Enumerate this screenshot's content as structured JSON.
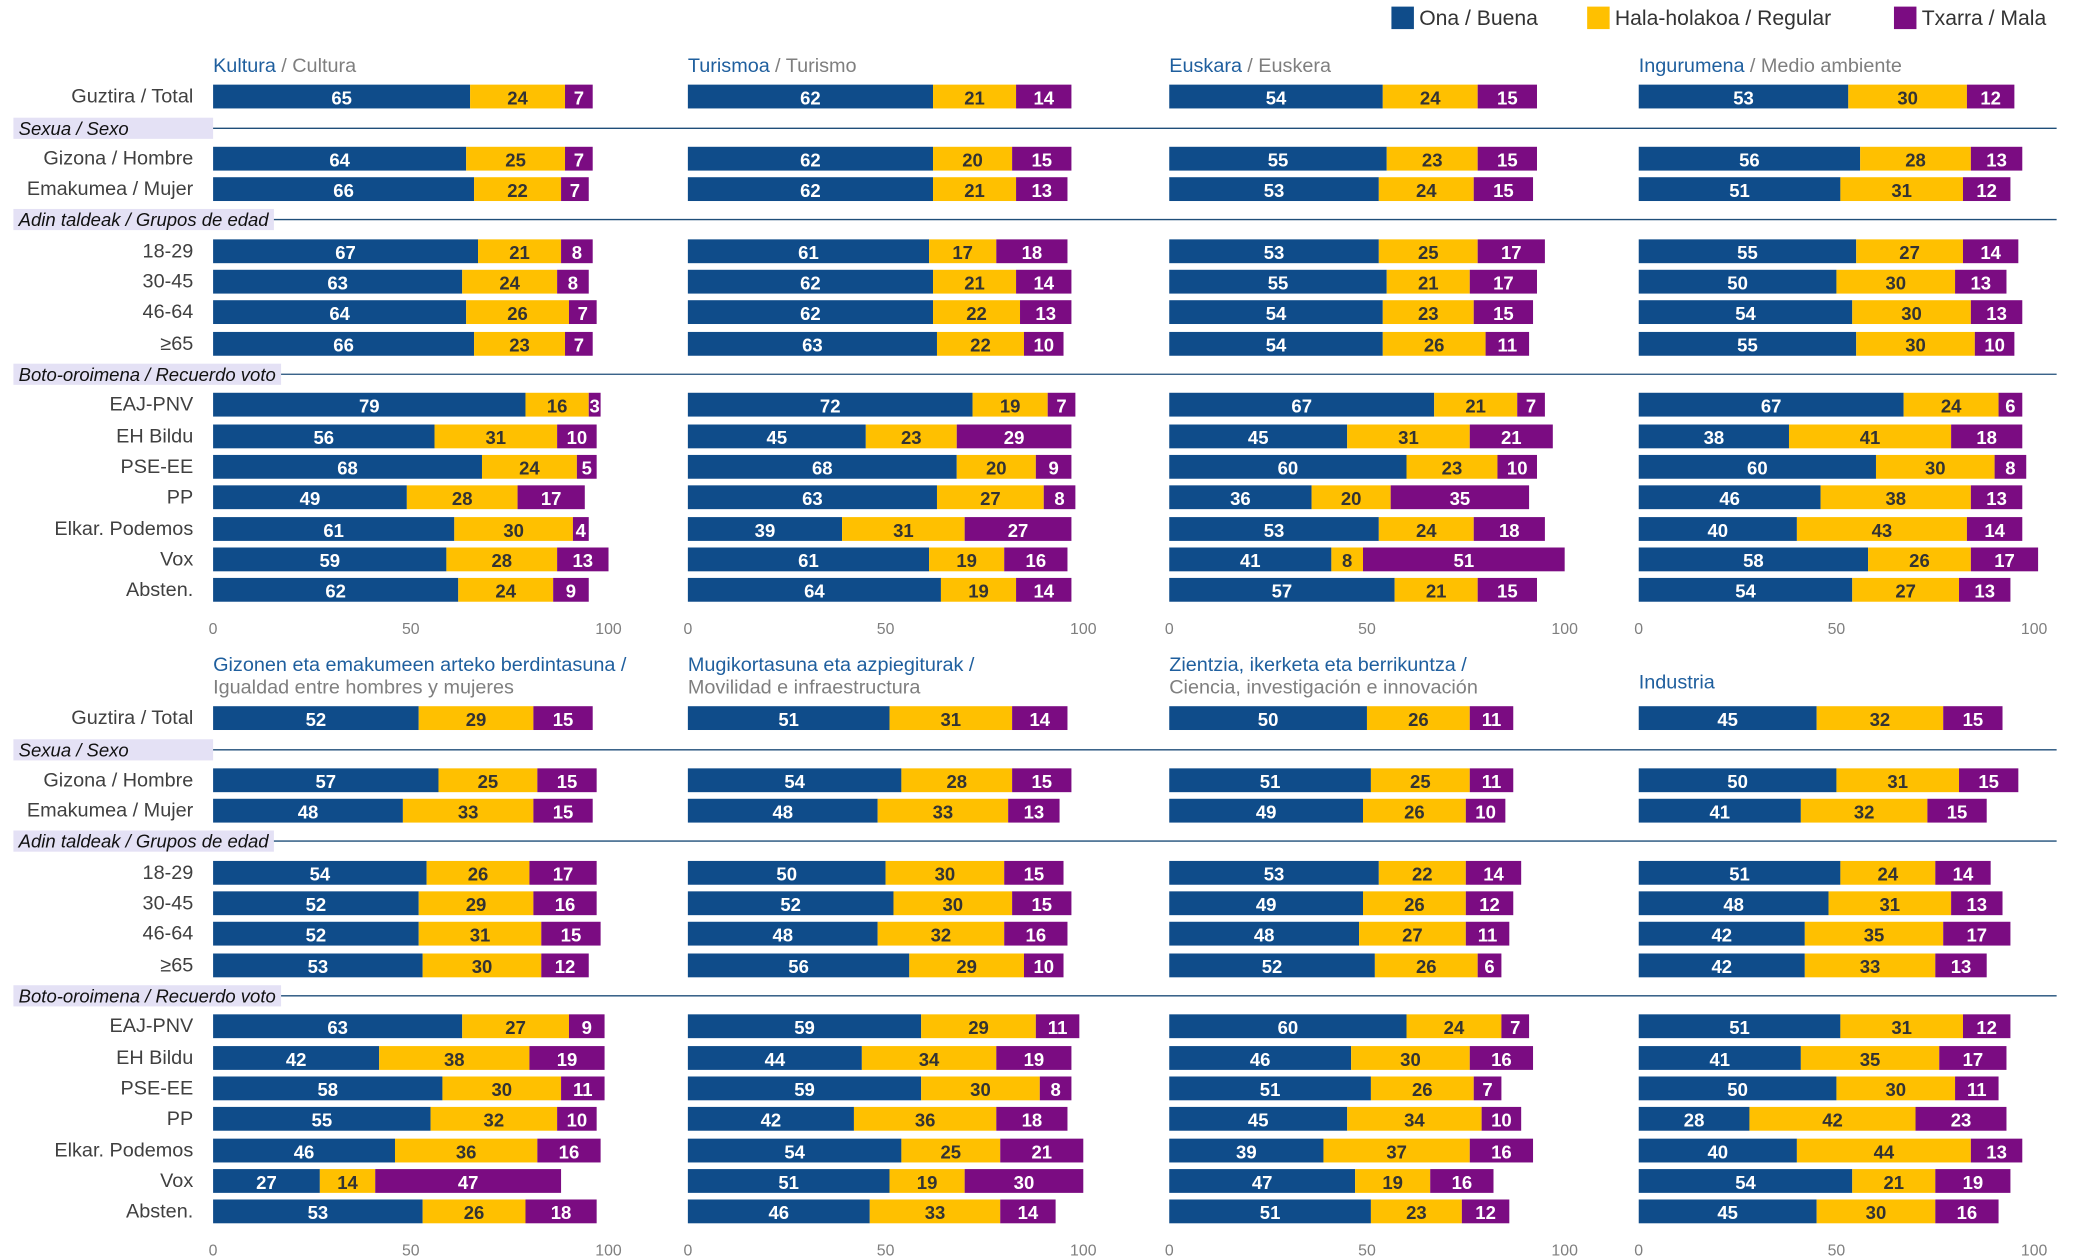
{
  "legend": [
    {
      "name": "Ona / Buena",
      "color": "#0f4c8a"
    },
    {
      "name": "Hala-holakoa / Regular",
      "color": "#ffc000"
    },
    {
      "name": "Txarra / Mala",
      "color": "#7b0c82"
    }
  ],
  "categories": [
    "Guztira / Total",
    "Gizona / Hombre",
    "Emakumea / Mujer",
    "18-29",
    "30-45",
    "46-64",
    "≥65",
    "EAJ-PNV",
    "EH Bildu",
    "PSE-EE",
    "PP",
    "Elkar. Podemos",
    "Vox",
    "Absten."
  ],
  "groups": [
    "Sexua / Sexo",
    "Adin taldeak / Grupos de edad",
    "Boto-oroimena / Recuerdo voto"
  ],
  "chart_data": [
    {
      "type": "bar",
      "orientation": "horizontal",
      "stacked": true,
      "title": "Kultura",
      "subtitle": "/ Cultura",
      "xlim": [
        0,
        100
      ],
      "xticks": [
        0,
        50,
        100
      ],
      "series": [
        {
          "values": [
            65,
            64,
            66,
            67,
            63,
            64,
            66,
            79,
            56,
            68,
            49,
            61,
            59,
            62
          ]
        },
        {
          "values": [
            24,
            25,
            22,
            21,
            24,
            26,
            23,
            16,
            31,
            24,
            28,
            30,
            28,
            24
          ]
        },
        {
          "values": [
            7,
            7,
            7,
            8,
            8,
            7,
            7,
            3,
            10,
            5,
            17,
            4,
            13,
            9
          ]
        }
      ]
    },
    {
      "type": "bar",
      "orientation": "horizontal",
      "stacked": true,
      "title": "Turismoa",
      "subtitle": "/ Turismo",
      "xlim": [
        0,
        100
      ],
      "xticks": [
        0,
        50,
        100
      ],
      "series": [
        {
          "values": [
            62,
            62,
            62,
            61,
            62,
            62,
            63,
            72,
            45,
            68,
            63,
            39,
            61,
            64
          ]
        },
        {
          "values": [
            21,
            20,
            21,
            17,
            21,
            22,
            22,
            19,
            23,
            20,
            27,
            31,
            19,
            19
          ]
        },
        {
          "values": [
            14,
            15,
            13,
            18,
            14,
            13,
            10,
            7,
            29,
            9,
            8,
            27,
            16,
            14
          ]
        }
      ]
    },
    {
      "type": "bar",
      "orientation": "horizontal",
      "stacked": true,
      "title": "Euskara",
      "subtitle": "/ Euskera",
      "xlim": [
        0,
        100
      ],
      "xticks": [
        0,
        50,
        100
      ],
      "series": [
        {
          "values": [
            54,
            55,
            53,
            53,
            55,
            54,
            54,
            67,
            45,
            60,
            36,
            53,
            41,
            57
          ]
        },
        {
          "values": [
            24,
            23,
            24,
            25,
            21,
            23,
            26,
            21,
            31,
            23,
            20,
            24,
            8,
            21
          ]
        },
        {
          "values": [
            15,
            15,
            15,
            17,
            17,
            15,
            11,
            7,
            21,
            10,
            35,
            18,
            51,
            15
          ]
        }
      ]
    },
    {
      "type": "bar",
      "orientation": "horizontal",
      "stacked": true,
      "title": "Ingurumena",
      "subtitle": "/ Medio ambiente",
      "xlim": [
        0,
        100
      ],
      "xticks": [
        0,
        50,
        100
      ],
      "series": [
        {
          "values": [
            53,
            56,
            51,
            55,
            50,
            54,
            55,
            67,
            38,
            60,
            46,
            40,
            58,
            54
          ]
        },
        {
          "values": [
            30,
            28,
            31,
            27,
            30,
            30,
            30,
            24,
            41,
            30,
            38,
            43,
            26,
            27
          ]
        },
        {
          "values": [
            12,
            13,
            12,
            14,
            13,
            13,
            10,
            6,
            18,
            8,
            13,
            14,
            17,
            13
          ]
        }
      ]
    },
    {
      "type": "bar",
      "orientation": "horizontal",
      "stacked": true,
      "title": "Gizonen eta emakumeen arteko berdintasuna /",
      "subtitle": "Igualdad entre hombres y mujeres",
      "xlim": [
        0,
        100
      ],
      "xticks": [
        0,
        50,
        100
      ],
      "series": [
        {
          "values": [
            52,
            57,
            48,
            54,
            52,
            52,
            53,
            63,
            42,
            58,
            55,
            46,
            27,
            53
          ]
        },
        {
          "values": [
            29,
            25,
            33,
            26,
            29,
            31,
            30,
            27,
            38,
            30,
            32,
            36,
            14,
            26
          ]
        },
        {
          "values": [
            15,
            15,
            15,
            17,
            16,
            15,
            12,
            9,
            19,
            11,
            10,
            16,
            47,
            18
          ]
        }
      ]
    },
    {
      "type": "bar",
      "orientation": "horizontal",
      "stacked": true,
      "title": "Mugikortasuna eta azpiegiturak /",
      "subtitle": "Movilidad e infraestructura",
      "xlim": [
        0,
        100
      ],
      "xticks": [
        0,
        50,
        100
      ],
      "series": [
        {
          "values": [
            51,
            54,
            48,
            50,
            52,
            48,
            56,
            59,
            44,
            59,
            42,
            54,
            51,
            46
          ]
        },
        {
          "values": [
            31,
            28,
            33,
            30,
            30,
            32,
            29,
            29,
            34,
            30,
            36,
            25,
            19,
            33
          ]
        },
        {
          "values": [
            14,
            15,
            13,
            15,
            15,
            16,
            10,
            11,
            19,
            8,
            18,
            21,
            30,
            14
          ]
        }
      ]
    },
    {
      "type": "bar",
      "orientation": "horizontal",
      "stacked": true,
      "title": "Zientzia, ikerketa eta berrikuntza /",
      "subtitle": "Ciencia, investigación e innovación",
      "xlim": [
        0,
        100
      ],
      "xticks": [
        0,
        50,
        100
      ],
      "series": [
        {
          "values": [
            50,
            51,
            49,
            53,
            49,
            48,
            52,
            60,
            46,
            51,
            45,
            39,
            47,
            51
          ]
        },
        {
          "values": [
            26,
            25,
            26,
            22,
            26,
            27,
            26,
            24,
            30,
            26,
            34,
            37,
            19,
            23
          ]
        },
        {
          "values": [
            11,
            11,
            10,
            14,
            12,
            11,
            6,
            7,
            16,
            7,
            10,
            16,
            16,
            12
          ]
        }
      ]
    },
    {
      "type": "bar",
      "orientation": "horizontal",
      "stacked": true,
      "title": "Industria",
      "xlim": [
        0,
        100
      ],
      "xticks": [
        0,
        50,
        100
      ],
      "series": [
        {
          "values": [
            45,
            50,
            41,
            51,
            48,
            42,
            42,
            51,
            41,
            50,
            28,
            40,
            54,
            45
          ]
        },
        {
          "values": [
            32,
            31,
            32,
            24,
            31,
            35,
            33,
            31,
            35,
            30,
            42,
            44,
            21,
            30
          ]
        },
        {
          "values": [
            15,
            15,
            15,
            14,
            13,
            17,
            13,
            12,
            17,
            11,
            23,
            13,
            19,
            16
          ]
        }
      ]
    }
  ]
}
